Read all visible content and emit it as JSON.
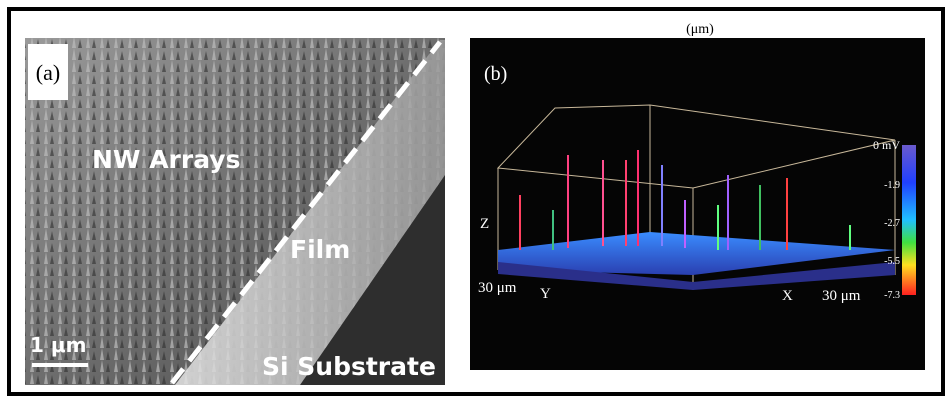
{
  "panel_a": {
    "label": "(a)",
    "region_labels": [
      "NW Arrays",
      "Film",
      "Si Substrate"
    ],
    "scale_bar": "1 μm"
  },
  "panel_b": {
    "label": "(b)",
    "top_text": "(μm)",
    "z_label": "Z",
    "y_label": "Y",
    "x_label": "X",
    "y_extent": "30 μm",
    "x_extent": "30 μm",
    "colorbar": [
      "0 mV",
      "-1.9",
      "-2.7",
      "-5.5",
      "-7.3"
    ]
  }
}
